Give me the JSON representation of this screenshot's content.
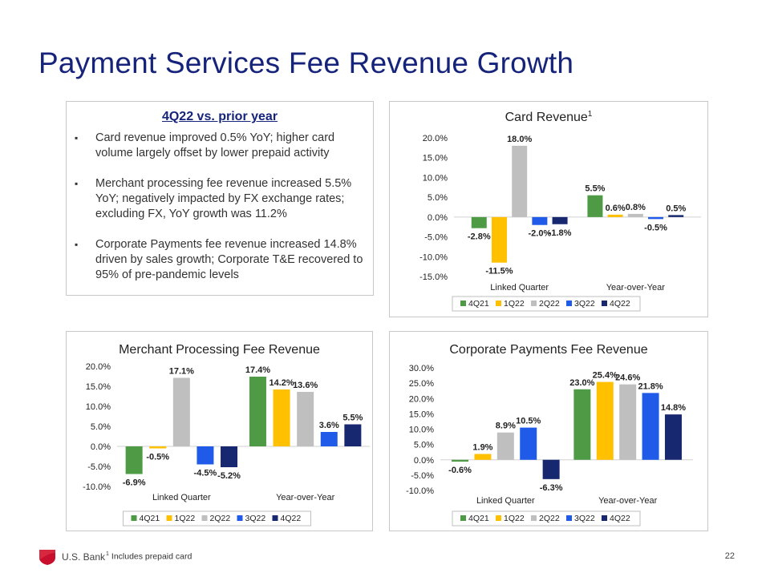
{
  "page": {
    "title": "Payment Services Fee Revenue Growth",
    "brand": "U.S. Bank",
    "footnote_mark": "1",
    "footnote": "Includes prepaid card",
    "page_number": "22"
  },
  "summary": {
    "heading": "4Q22 vs. prior year",
    "bullet_symbol": "▪",
    "bullets": [
      "Card revenue improved 0.5% YoY; higher card volume largely offset by lower prepaid activity",
      "Merchant processing fee revenue increased 5.5% YoY; negatively impacted by FX exchange rates; excluding FX, YoY growth was 11.2%",
      "Corporate Payments fee revenue increased 14.8% driven by sales growth; Corporate T&E recovered to 95% of pre-pandemic levels"
    ]
  },
  "colors": {
    "title": "#16237b",
    "series": [
      "#4e9a45",
      "#ffc000",
      "#bfbfbf",
      "#1f5ae8",
      "#172770"
    ],
    "brand_red": "#c8102e"
  },
  "chart_data": [
    {
      "type": "bar",
      "title": "Card Revenue",
      "title_superscript": "1",
      "categories": [
        "Linked Quarter",
        "Year-over-Year"
      ],
      "series": [
        {
          "name": "4Q21",
          "values": [
            -2.8,
            5.5
          ]
        },
        {
          "name": "1Q22",
          "values": [
            -11.5,
            0.6
          ]
        },
        {
          "name": "2Q22",
          "values": [
            18.0,
            0.8
          ]
        },
        {
          "name": "3Q22",
          "values": [
            -2.0,
            -0.5
          ]
        },
        {
          "name": "4Q22",
          "values": [
            -1.8,
            0.5
          ]
        }
      ],
      "ylim": [
        -15,
        20
      ],
      "yticks": [
        20,
        15,
        10,
        5,
        0,
        -5,
        -10,
        -15
      ],
      "grid": false,
      "legend": "bottom"
    },
    {
      "type": "bar",
      "title": "Merchant Processing Fee Revenue",
      "categories": [
        "Linked Quarter",
        "Year-over-Year"
      ],
      "series": [
        {
          "name": "4Q21",
          "values": [
            -6.9,
            17.4
          ]
        },
        {
          "name": "1Q22",
          "values": [
            -0.5,
            14.2
          ]
        },
        {
          "name": "2Q22",
          "values": [
            17.1,
            13.6
          ]
        },
        {
          "name": "3Q22",
          "values": [
            -4.5,
            3.6
          ]
        },
        {
          "name": "4Q22",
          "values": [
            -5.2,
            5.5
          ]
        }
      ],
      "ylim": [
        -10,
        20
      ],
      "yticks": [
        20,
        15,
        10,
        5,
        0,
        -5,
        -10
      ],
      "grid": false,
      "legend": "bottom"
    },
    {
      "type": "bar",
      "title": "Corporate Payments Fee Revenue",
      "categories": [
        "Linked Quarter",
        "Year-over-Year"
      ],
      "series": [
        {
          "name": "4Q21",
          "values": [
            -0.6,
            23.0
          ]
        },
        {
          "name": "1Q22",
          "values": [
            1.9,
            25.4
          ]
        },
        {
          "name": "2Q22",
          "values": [
            8.9,
            24.6
          ]
        },
        {
          "name": "3Q22",
          "values": [
            10.5,
            21.8
          ]
        },
        {
          "name": "4Q22",
          "values": [
            -6.3,
            14.8
          ]
        }
      ],
      "ylim": [
        -10,
        30
      ],
      "yticks": [
        30,
        25,
        20,
        15,
        10,
        5,
        0,
        -5,
        -10
      ],
      "grid": false,
      "legend": "bottom"
    }
  ]
}
